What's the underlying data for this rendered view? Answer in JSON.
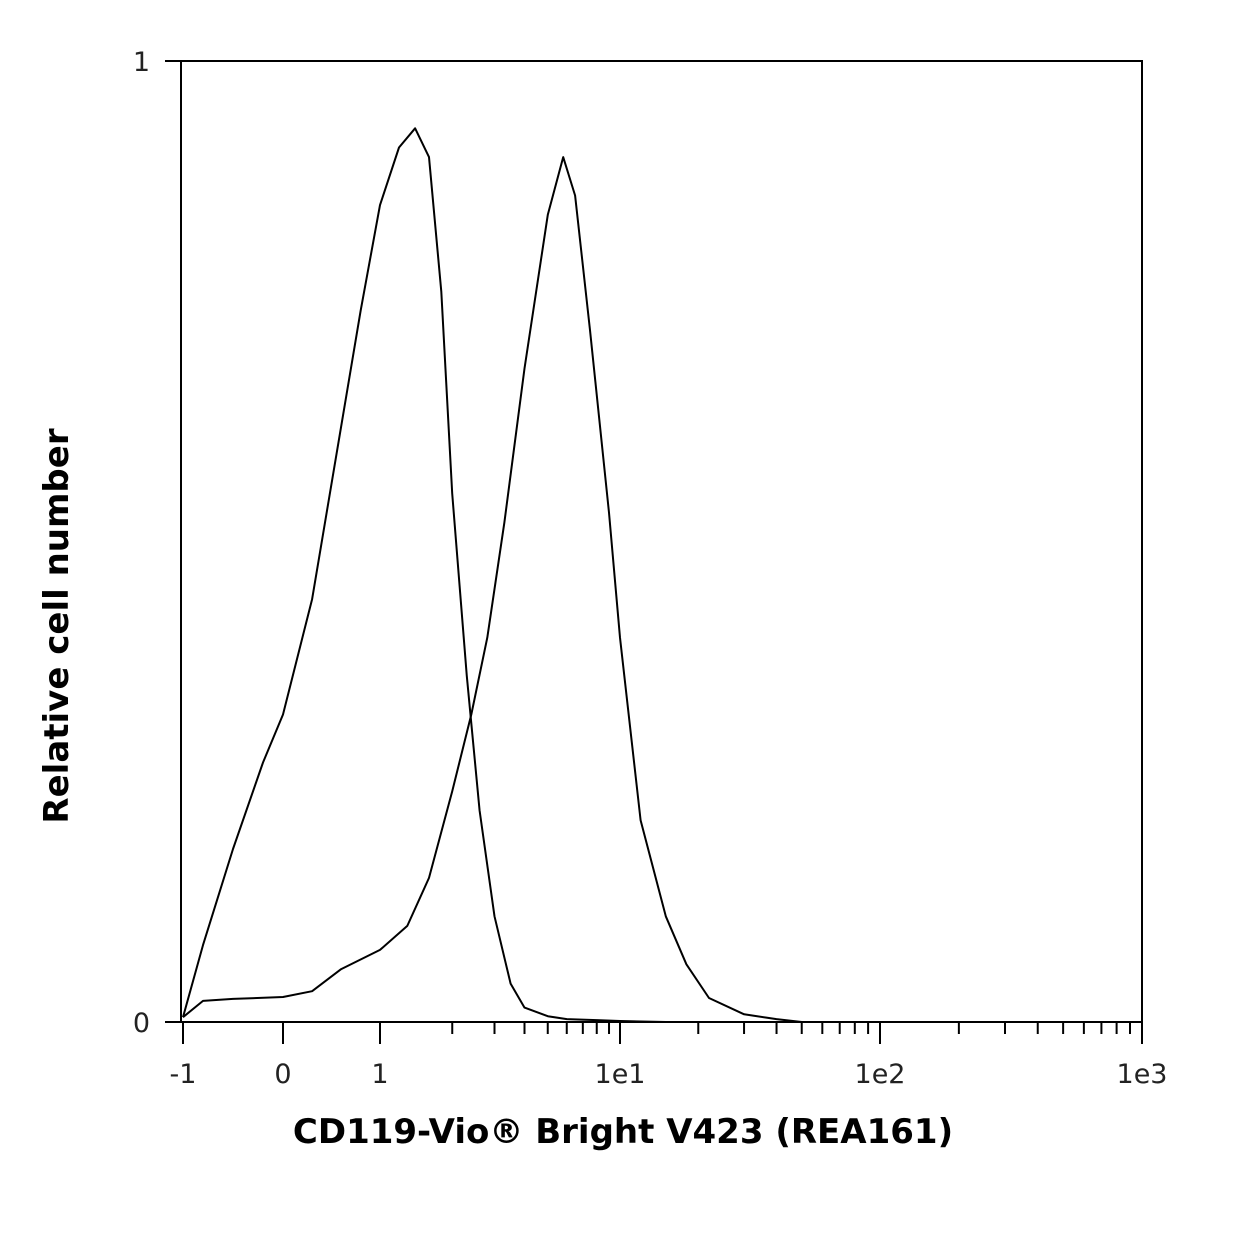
{
  "chart_data": {
    "type": "line",
    "title": "",
    "xlabel": "CD119-Vio® Bright V423 (REA161)",
    "ylabel": "Relative cell number",
    "x_scale": "biexponential (linear near 0, logarithmic above)",
    "x_ticks": [
      "-1",
      "0",
      "1",
      "1e1",
      "1e2",
      "1e3"
    ],
    "y_ticks": [
      "0",
      "1"
    ],
    "xlim": [
      -1,
      1000
    ],
    "ylim": [
      0,
      1
    ],
    "grid": false,
    "legend": "none",
    "line_color": "#000000",
    "series": [
      {
        "x": [
          -1,
          -0.8,
          -0.5,
          -0.2,
          0,
          0.3,
          0.6,
          0.8,
          1,
          1.2,
          1.4,
          1.6,
          1.8,
          2,
          2.3,
          2.6,
          3,
          3.5,
          4,
          5,
          6,
          8,
          10,
          15
        ],
        "y": [
          0.005,
          0.08,
          0.18,
          0.27,
          0.32,
          0.44,
          0.62,
          0.74,
          0.85,
          0.91,
          0.93,
          0.9,
          0.76,
          0.55,
          0.36,
          0.22,
          0.11,
          0.04,
          0.015,
          0.006,
          0.003,
          0.002,
          0.001,
          0
        ]
      },
      {
        "x": [
          -1,
          -0.8,
          -0.5,
          0,
          0.3,
          0.6,
          1,
          1.3,
          1.6,
          2,
          2.4,
          2.8,
          3.3,
          4,
          5,
          5.8,
          6.5,
          7.5,
          9,
          10,
          12,
          15,
          18,
          22,
          30,
          40,
          50
        ],
        "y": [
          0.005,
          0.022,
          0.024,
          0.026,
          0.032,
          0.055,
          0.075,
          0.1,
          0.15,
          0.24,
          0.32,
          0.4,
          0.52,
          0.68,
          0.84,
          0.9,
          0.86,
          0.72,
          0.53,
          0.4,
          0.21,
          0.11,
          0.06,
          0.025,
          0.008,
          0.003,
          0
        ]
      }
    ]
  }
}
